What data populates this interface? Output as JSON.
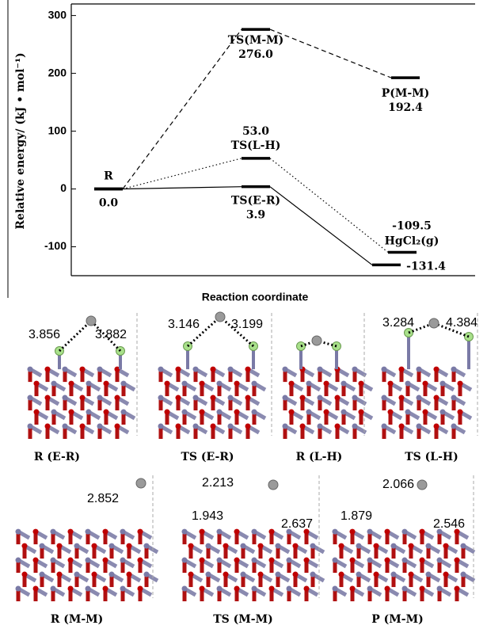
{
  "chart_data": {
    "type": "energy-profile",
    "y_label": "Relative energy/ (kJ • mol⁻¹)",
    "x_label": "Reaction coordinate",
    "ylim": [
      -150,
      320
    ],
    "yticks": [
      -100,
      0,
      100,
      200,
      300
    ],
    "series": [
      {
        "style": "solid",
        "values": [
          0,
          3.9,
          -131.4
        ],
        "value_labels": [
          "0.0",
          "3.9",
          "-131.4"
        ],
        "state_labels": [
          "R",
          "TS(E-R)",
          null
        ]
      },
      {
        "style": "dotted",
        "values": [
          0,
          53.0,
          -109.5
        ],
        "value_labels": [
          null,
          "53.0",
          "-109.5"
        ],
        "state_labels": [
          null,
          "TS(L-H)",
          "HgCl₂(g)"
        ]
      },
      {
        "style": "dashed",
        "values": [
          0,
          276.0,
          192.4
        ],
        "value_labels": [
          null,
          "276.0",
          "192.4"
        ],
        "state_labels": [
          null,
          "TS(M-M)",
          "P(M-M)"
        ]
      }
    ]
  },
  "structures": [
    {
      "label": "R (E-R)",
      "distances": [
        "3.856",
        "3.882"
      ]
    },
    {
      "label": "TS (E-R)",
      "distances": [
        "3.146",
        "3.199"
      ]
    },
    {
      "label": "R (L-H)",
      "distances": []
    },
    {
      "label": "TS (L-H)",
      "distances": [
        "3.284",
        "4.384"
      ]
    },
    {
      "label": "R (M-M)",
      "distances": [
        "2.852"
      ]
    },
    {
      "label": "TS (M-M)",
      "distances": [
        "1.943",
        "2.213",
        "2.637"
      ]
    },
    {
      "label": "P (M-M)",
      "distances": [
        "1.879",
        "2.066",
        "2.546"
      ]
    }
  ]
}
